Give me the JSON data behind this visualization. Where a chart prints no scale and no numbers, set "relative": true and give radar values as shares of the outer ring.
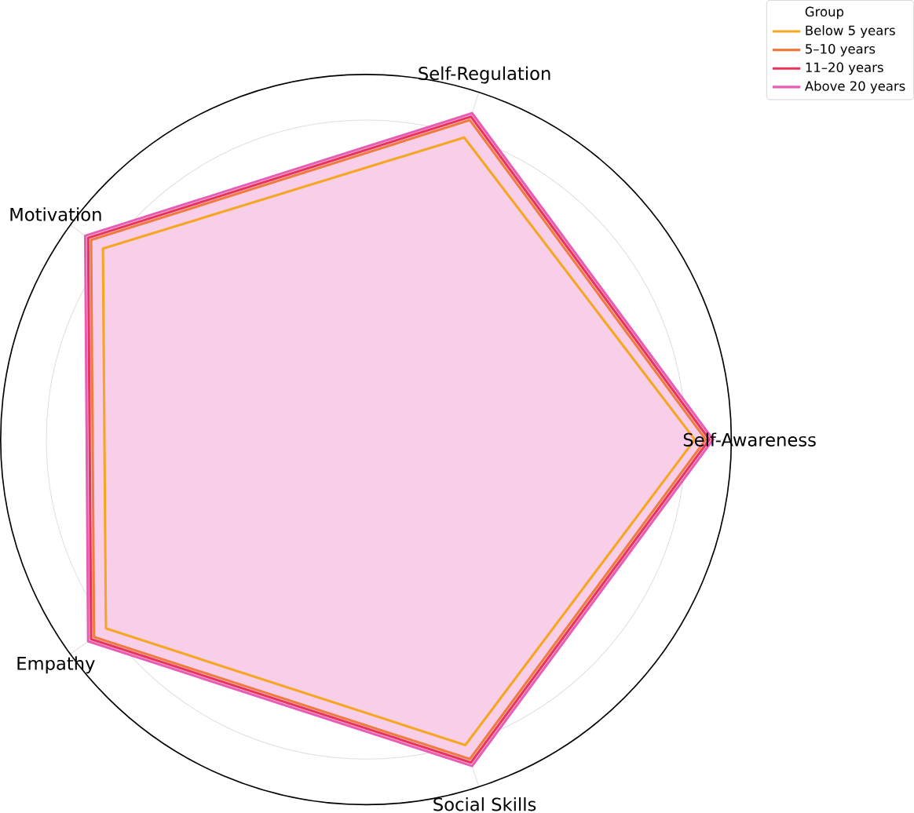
{
  "chart_data": {
    "type": "radar",
    "relative": true,
    "legend_title": "Group",
    "legend": "top right",
    "grid": true,
    "marker": "none",
    "line_style": "solid",
    "categories": [
      "Self-Awareness",
      "Social Skills",
      "Empathy",
      "Motivation",
      "Self-Regulation"
    ],
    "series": [
      {
        "name": "Below 5 years",
        "color": "#f5a623",
        "values": [
          0.9,
          0.88,
          0.88,
          0.89,
          0.87
        ]
      },
      {
        "name": "5–10 years",
        "color": "#f07b3f",
        "values": [
          0.93,
          0.92,
          0.92,
          0.93,
          0.92
        ]
      },
      {
        "name": "11–20 years",
        "color": "#e8335a",
        "values": [
          0.94,
          0.93,
          0.93,
          0.94,
          0.93
        ]
      },
      {
        "name": "Above 20 years",
        "color": "#e85cb5",
        "values": [
          0.95,
          0.94,
          0.94,
          0.95,
          0.94
        ]
      }
    ]
  }
}
